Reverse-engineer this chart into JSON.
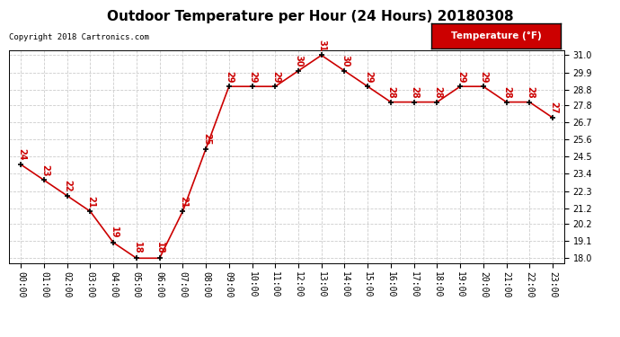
{
  "title": "Outdoor Temperature per Hour (24 Hours) 20180308",
  "copyright": "Copyright 2018 Cartronics.com",
  "hours": [
    0,
    1,
    2,
    3,
    4,
    5,
    6,
    7,
    8,
    9,
    10,
    11,
    12,
    13,
    14,
    15,
    16,
    17,
    18,
    19,
    20,
    21,
    22,
    23
  ],
  "temps": [
    24,
    23,
    22,
    21,
    19,
    18,
    18,
    21,
    25,
    29,
    29,
    29,
    30,
    31,
    30,
    29,
    28,
    28,
    28,
    29,
    29,
    28,
    28,
    27
  ],
  "x_labels": [
    "00:00",
    "01:00",
    "02:00",
    "03:00",
    "04:00",
    "05:00",
    "06:00",
    "07:00",
    "08:00",
    "09:00",
    "10:00",
    "11:00",
    "12:00",
    "13:00",
    "14:00",
    "15:00",
    "16:00",
    "17:00",
    "18:00",
    "19:00",
    "20:00",
    "21:00",
    "22:00",
    "23:00"
  ],
  "y_ticks": [
    18.0,
    19.1,
    20.2,
    21.2,
    22.3,
    23.4,
    24.5,
    25.6,
    26.7,
    27.8,
    28.8,
    29.9,
    31.0
  ],
  "ylim": [
    17.7,
    31.3
  ],
  "line_color": "#cc0000",
  "marker_color": "#000000",
  "label_color": "#cc0000",
  "grid_color": "#cccccc",
  "bg_color": "#ffffff",
  "legend_bg": "#cc0000",
  "legend_text": "Temperature (°F)",
  "title_fontsize": 11,
  "copyright_fontsize": 6.5,
  "label_fontsize": 7,
  "tick_fontsize": 7
}
